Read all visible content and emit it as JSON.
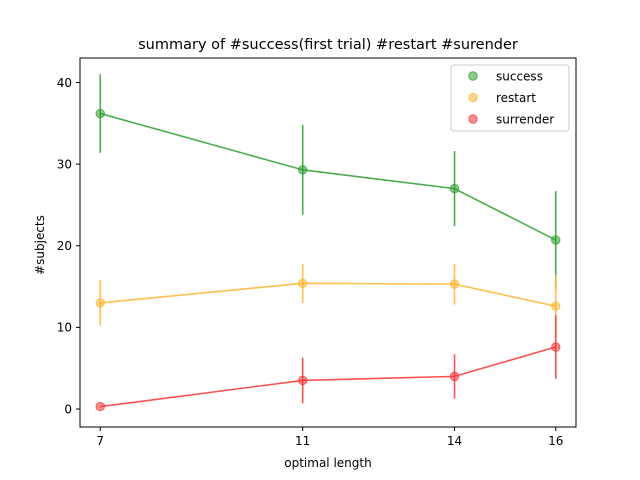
{
  "chart_data": {
    "type": "line",
    "title": "summary of #success(first trial) #restart #surender",
    "xlabel": "optimal length",
    "ylabel": "#subjects",
    "x": [
      7,
      11,
      14,
      16
    ],
    "xticks": [
      "7",
      "11",
      "14",
      "16"
    ],
    "yticks": [
      "0",
      "10",
      "20",
      "30",
      "40"
    ],
    "xlim": [
      6.6,
      16.4
    ],
    "ylim": [
      -2.2,
      43
    ],
    "grid": false,
    "legend_position": "top-right",
    "series": [
      {
        "name": "success",
        "color": "#2ca02c",
        "values": [
          36.2,
          29.3,
          27.0,
          20.7
        ],
        "error": [
          4.8,
          5.5,
          4.6,
          6.0
        ]
      },
      {
        "name": "restart",
        "color": "#ffb52e",
        "values": [
          13.0,
          15.4,
          15.3,
          12.6
        ],
        "error": [
          2.8,
          2.4,
          2.5,
          3.8
        ]
      },
      {
        "name": "surrender",
        "color": "#ff3333",
        "values": [
          0.3,
          3.5,
          4.0,
          7.6
        ],
        "error": [
          0.0,
          2.8,
          2.7,
          3.9
        ]
      }
    ]
  }
}
